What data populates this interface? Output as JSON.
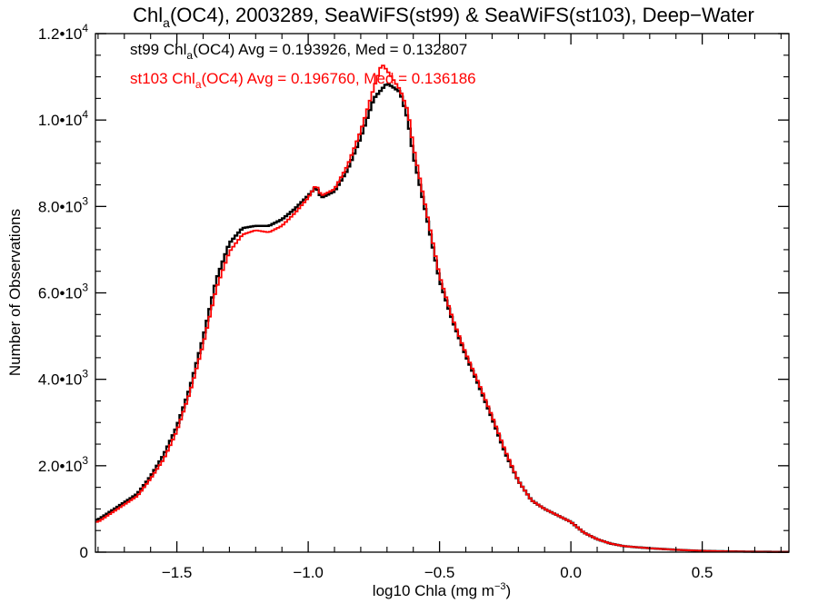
{
  "chart_data": {
    "type": "line",
    "title": {
      "prefix": "Chl",
      "sub": "a",
      "rest": "(OC4), 2003289, SeaWiFS(st99) & SeaWiFS(st103), Deep−Water"
    },
    "xlabel": {
      "main": "log10 Chla (mg m",
      "sup": "−3",
      "close": ")"
    },
    "ylabel": "Number of Observations",
    "xlim": [
      -1.81,
      0.83
    ],
    "ylim": [
      0,
      12000
    ],
    "x_ticks": [
      {
        "value": -1.5,
        "label": "−1.5"
      },
      {
        "value": -1.0,
        "label": "−1.0"
      },
      {
        "value": -0.5,
        "label": "−0.5"
      },
      {
        "value": 0.0,
        "label": "0.0"
      },
      {
        "value": 0.5,
        "label": "0.5"
      }
    ],
    "y_ticks": [
      {
        "value": 0,
        "label": "0",
        "sup": ""
      },
      {
        "value": 2000,
        "label": "2.0•10",
        "sup": "3"
      },
      {
        "value": 4000,
        "label": "4.0•10",
        "sup": "3"
      },
      {
        "value": 6000,
        "label": "6.0•10",
        "sup": "3"
      },
      {
        "value": 8000,
        "label": "8.0•10",
        "sup": "3"
      },
      {
        "value": 10000,
        "label": "1.0•10",
        "sup": "4"
      },
      {
        "value": 12000,
        "label": "1.2•10",
        "sup": "4"
      }
    ],
    "legend": {
      "position": "top-left",
      "entries": [
        {
          "prefix": "st99 Chl",
          "sub": "a",
          "rest": "(OC4) Avg = 0.193926, Med = 0.132807",
          "color": "#000000"
        },
        {
          "prefix": "st103 Chl",
          "sub": "a",
          "rest": "(OC4) Avg = 0.196760, Med = 0.136186",
          "color": "#ff0000"
        }
      ]
    },
    "series": [
      {
        "color": "#000000",
        "style": "step",
        "points": [
          [
            -1.8,
            750
          ],
          [
            -1.75,
            950
          ],
          [
            -1.7,
            1150
          ],
          [
            -1.65,
            1350
          ],
          [
            -1.6,
            1750
          ],
          [
            -1.55,
            2250
          ],
          [
            -1.5,
            2900
          ],
          [
            -1.45,
            3800
          ],
          [
            -1.4,
            4950
          ],
          [
            -1.35,
            6300
          ],
          [
            -1.3,
            7150
          ],
          [
            -1.25,
            7500
          ],
          [
            -1.2,
            7550
          ],
          [
            -1.15,
            7550
          ],
          [
            -1.1,
            7700
          ],
          [
            -1.05,
            7950
          ],
          [
            -1.0,
            8250
          ],
          [
            -0.97,
            8450
          ],
          [
            -0.95,
            8200
          ],
          [
            -0.9,
            8350
          ],
          [
            -0.85,
            8850
          ],
          [
            -0.8,
            9600
          ],
          [
            -0.75,
            10500
          ],
          [
            -0.7,
            10850
          ],
          [
            -0.65,
            10650
          ],
          [
            -0.62,
            10000
          ],
          [
            -0.6,
            9200
          ],
          [
            -0.55,
            7800
          ],
          [
            -0.5,
            6300
          ],
          [
            -0.45,
            5350
          ],
          [
            -0.4,
            4550
          ],
          [
            -0.35,
            3850
          ],
          [
            -0.3,
            3100
          ],
          [
            -0.25,
            2300
          ],
          [
            -0.2,
            1650
          ],
          [
            -0.15,
            1200
          ],
          [
            -0.1,
            1000
          ],
          [
            -0.05,
            850
          ],
          [
            0.0,
            700
          ],
          [
            0.05,
            450
          ],
          [
            0.1,
            300
          ],
          [
            0.15,
            200
          ],
          [
            0.2,
            140
          ],
          [
            0.3,
            90
          ],
          [
            0.4,
            55
          ],
          [
            0.5,
            30
          ],
          [
            0.6,
            18
          ],
          [
            0.7,
            10
          ],
          [
            0.8,
            6
          ]
        ]
      },
      {
        "color": "#ff0000",
        "style": "step",
        "points": [
          [
            -1.8,
            700
          ],
          [
            -1.75,
            900
          ],
          [
            -1.7,
            1100
          ],
          [
            -1.65,
            1300
          ],
          [
            -1.6,
            1700
          ],
          [
            -1.55,
            2150
          ],
          [
            -1.5,
            2800
          ],
          [
            -1.45,
            3700
          ],
          [
            -1.4,
            4800
          ],
          [
            -1.35,
            6100
          ],
          [
            -1.3,
            6950
          ],
          [
            -1.25,
            7350
          ],
          [
            -1.2,
            7450
          ],
          [
            -1.15,
            7400
          ],
          [
            -1.1,
            7550
          ],
          [
            -1.05,
            7850
          ],
          [
            -1.0,
            8200
          ],
          [
            -0.97,
            8500
          ],
          [
            -0.95,
            8250
          ],
          [
            -0.9,
            8400
          ],
          [
            -0.85,
            8950
          ],
          [
            -0.8,
            9750
          ],
          [
            -0.75,
            10750
          ],
          [
            -0.72,
            11300
          ],
          [
            -0.7,
            11150
          ],
          [
            -0.65,
            10700
          ],
          [
            -0.62,
            10200
          ],
          [
            -0.6,
            9400
          ],
          [
            -0.55,
            7900
          ],
          [
            -0.5,
            6400
          ],
          [
            -0.45,
            5400
          ],
          [
            -0.4,
            4600
          ],
          [
            -0.35,
            3900
          ],
          [
            -0.3,
            3150
          ],
          [
            -0.25,
            2350
          ],
          [
            -0.2,
            1650
          ],
          [
            -0.15,
            1200
          ],
          [
            -0.1,
            1000
          ],
          [
            -0.05,
            850
          ],
          [
            0.0,
            700
          ],
          [
            0.05,
            450
          ],
          [
            0.1,
            300
          ],
          [
            0.15,
            200
          ],
          [
            0.2,
            140
          ],
          [
            0.3,
            90
          ],
          [
            0.4,
            55
          ],
          [
            0.5,
            30
          ],
          [
            0.6,
            18
          ],
          [
            0.7,
            10
          ],
          [
            0.8,
            6
          ]
        ]
      }
    ]
  }
}
